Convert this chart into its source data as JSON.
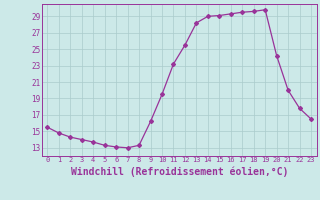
{
  "hours": [
    0,
    1,
    2,
    3,
    4,
    5,
    6,
    7,
    8,
    9,
    10,
    11,
    12,
    13,
    14,
    15,
    16,
    17,
    18,
    19,
    20,
    21,
    22,
    23
  ],
  "temps": [
    15.5,
    14.8,
    14.3,
    14.0,
    13.7,
    13.3,
    13.1,
    13.0,
    13.3,
    16.2,
    19.5,
    23.2,
    25.5,
    28.2,
    29.0,
    29.1,
    29.3,
    29.5,
    29.6,
    29.8,
    24.2,
    20.0,
    17.8,
    16.5
  ],
  "line_color": "#993399",
  "marker": "D",
  "marker_size": 2.0,
  "bg_color": "#cce9e8",
  "grid_color": "#aacccc",
  "xlabel": "Windchill (Refroidissement éolien,°C)",
  "xlabel_fontsize": 7,
  "tick_color": "#993399",
  "tick_label_color": "#993399",
  "ylim": [
    12,
    30.5
  ],
  "yticks": [
    13,
    15,
    17,
    19,
    21,
    23,
    25,
    27,
    29
  ],
  "xlim": [
    -0.5,
    23.5
  ],
  "xticks": [
    0,
    1,
    2,
    3,
    4,
    5,
    6,
    7,
    8,
    9,
    10,
    11,
    12,
    13,
    14,
    15,
    16,
    17,
    18,
    19,
    20,
    21,
    22,
    23
  ],
  "spine_color": "#993399"
}
